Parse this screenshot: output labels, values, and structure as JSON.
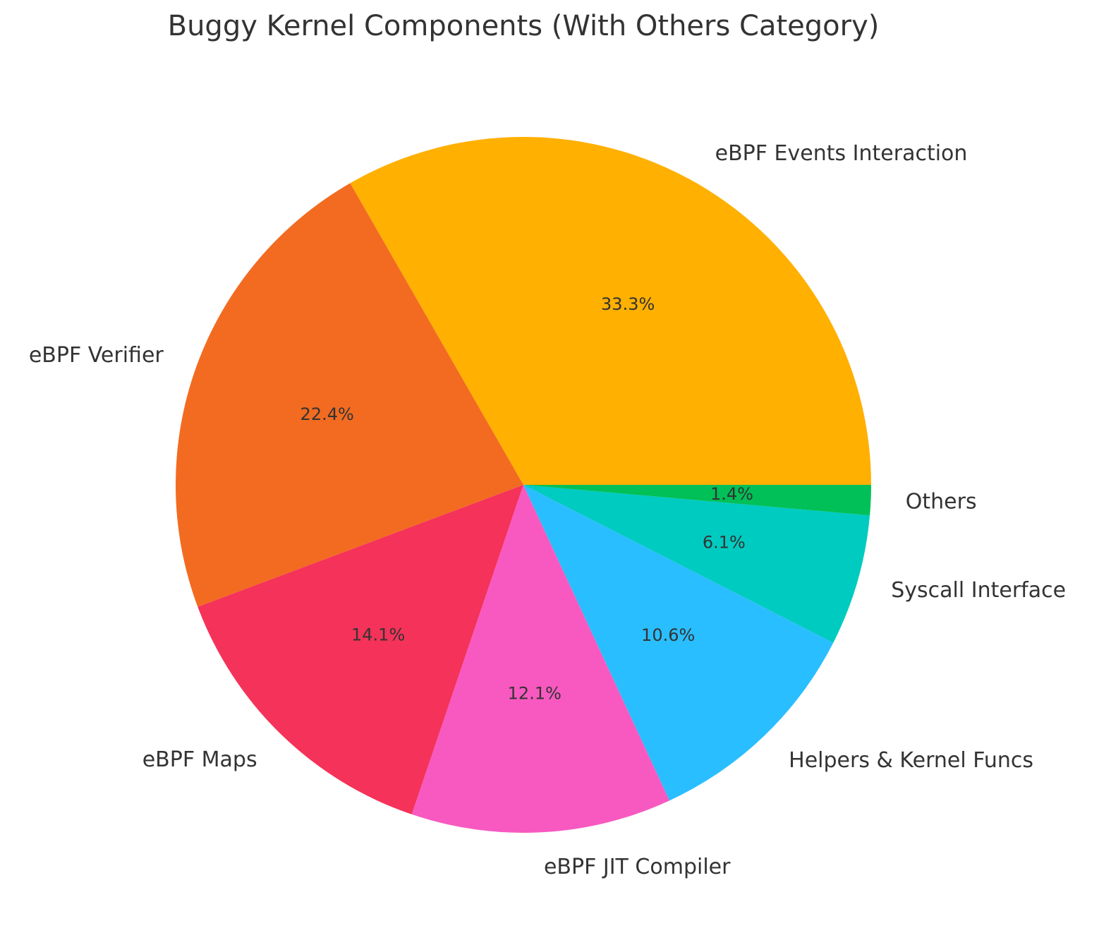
{
  "chart_data": {
    "type": "pie",
    "title": "Buggy Kernel Components (With Others Category)",
    "slices": [
      {
        "label": "eBPF Events Interaction",
        "value": 33.3,
        "pct_label": "33.3%",
        "color": "#FFB000"
      },
      {
        "label": "eBPF Verifier",
        "value": 22.4,
        "pct_label": "22.4%",
        "color": "#F26B21"
      },
      {
        "label": "eBPF Maps",
        "value": 14.1,
        "pct_label": "14.1%",
        "color": "#F53259"
      },
      {
        "label": "eBPF JIT Compiler",
        "value": 12.1,
        "pct_label": "12.1%",
        "color": "#F859C0"
      },
      {
        "label": "Helpers & Kernel Funcs",
        "value": 10.6,
        "pct_label": "10.6%",
        "color": "#29BEFF"
      },
      {
        "label": "Syscall Interface",
        "value": 6.1,
        "pct_label": "6.1%",
        "color": "#00CBC0"
      },
      {
        "label": "Others",
        "value": 1.4,
        "pct_label": "1.4%",
        "color": "#00C057"
      }
    ],
    "start_angle": "0 degrees (3 o'clock)",
    "direction": "counter-clockwise",
    "legend": "none"
  }
}
